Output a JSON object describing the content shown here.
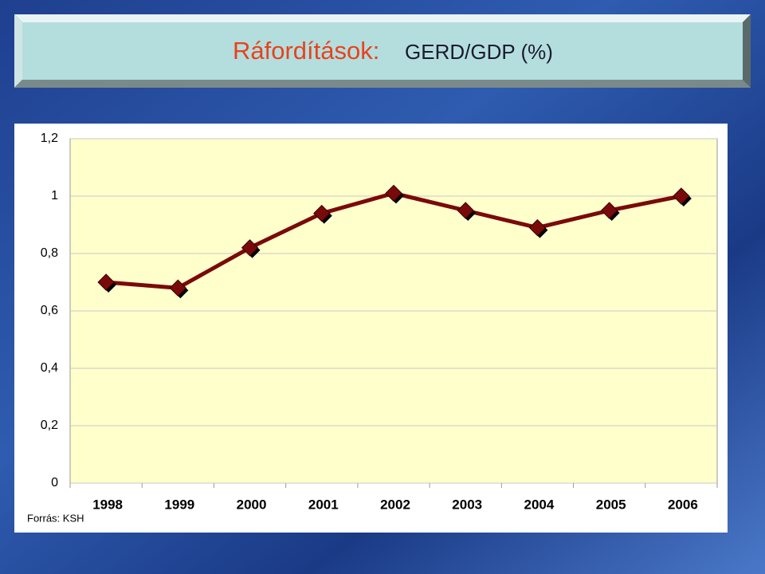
{
  "chart_data": {
    "type": "line",
    "title": "Ráfordítások:",
    "subtitle": "GERD/GDP (%)",
    "source": "Forrás: KSH",
    "categories": [
      "1998",
      "1999",
      "2000",
      "2001",
      "2002",
      "2003",
      "2004",
      "2005",
      "2006"
    ],
    "values": [
      0.7,
      0.68,
      0.82,
      0.94,
      1.01,
      0.95,
      0.89,
      0.95,
      1.0
    ],
    "color": "#7a0a0a",
    "ylim": [
      0,
      1.2
    ],
    "yticks": [
      0,
      {
        "value": 0.2,
        "label": "0,2"
      },
      {
        "value": 0.4,
        "label": "0,4"
      },
      {
        "value": 0.6,
        "label": "0,6"
      },
      {
        "value": 0.8,
        "label": "0,8"
      },
      1,
      {
        "value": 1.2,
        "label": "1,2"
      }
    ],
    "grid": true
  }
}
